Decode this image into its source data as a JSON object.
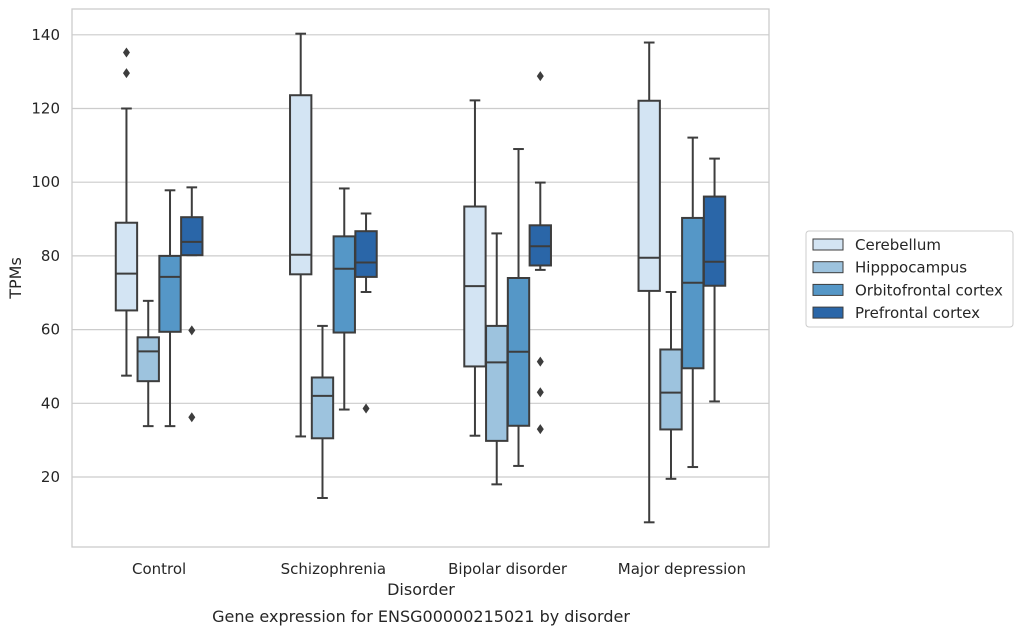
{
  "chart_data": {
    "type": "box",
    "title": "Gene expression for ENSG00000215021 by disorder",
    "xlabel": "Disorder",
    "ylabel": "TPMs",
    "ylim": [
      1,
      147
    ],
    "yticks": [
      20,
      40,
      60,
      80,
      100,
      120,
      140
    ],
    "grid": "horizontal",
    "legend_position": "right",
    "categories": [
      "Control",
      "Schizophrenia",
      "Bipolar disorder",
      "Major depression"
    ],
    "series": [
      {
        "name": "Cerebellum",
        "color": "#d3e4f3",
        "boxes": [
          {
            "whislo": 47.5,
            "q1": 65.2,
            "med": 75.2,
            "q3": 89.0,
            "whishi": 120.0,
            "fliers": [
              129.6,
              135.2
            ]
          },
          {
            "whislo": 31.0,
            "q1": 75.0,
            "med": 80.3,
            "q3": 123.6,
            "whishi": 140.3,
            "fliers": []
          },
          {
            "whislo": 31.2,
            "q1": 50.0,
            "med": 71.8,
            "q3": 93.4,
            "whishi": 122.2,
            "fliers": []
          },
          {
            "whislo": 7.7,
            "q1": 70.5,
            "med": 79.5,
            "q3": 122.1,
            "whishi": 137.9,
            "fliers": []
          }
        ]
      },
      {
        "name": "Hipppocampus",
        "color": "#9dc3de",
        "boxes": [
          {
            "whislo": 33.8,
            "q1": 46.0,
            "med": 54.1,
            "q3": 57.9,
            "whishi": 67.8,
            "fliers": []
          },
          {
            "whislo": 14.3,
            "q1": 30.5,
            "med": 42.0,
            "q3": 47.0,
            "whishi": 61.0,
            "fliers": []
          },
          {
            "whislo": 18.0,
            "q1": 29.8,
            "med": 51.1,
            "q3": 61.0,
            "whishi": 86.1,
            "fliers": []
          },
          {
            "whislo": 19.5,
            "q1": 32.9,
            "med": 42.9,
            "q3": 54.6,
            "whishi": 70.2,
            "fliers": []
          }
        ]
      },
      {
        "name": "Orbitofrontal cortex",
        "color": "#5597c7",
        "boxes": [
          {
            "whislo": 33.8,
            "q1": 59.4,
            "med": 74.3,
            "q3": 80.0,
            "whishi": 97.8,
            "fliers": []
          },
          {
            "whislo": 38.3,
            "q1": 59.2,
            "med": 76.5,
            "q3": 85.3,
            "whishi": 98.3,
            "fliers": []
          },
          {
            "whislo": 23.0,
            "q1": 33.9,
            "med": 54.0,
            "q3": 74.0,
            "whishi": 109.0,
            "fliers": []
          },
          {
            "whislo": 22.7,
            "q1": 49.5,
            "med": 72.7,
            "q3": 90.3,
            "whishi": 112.1,
            "fliers": []
          }
        ]
      },
      {
        "name": "Prefrontal cortex",
        "color": "#2a66a8",
        "boxes": [
          {
            "whislo": 80.2,
            "q1": 80.2,
            "med": 83.8,
            "q3": 90.5,
            "whishi": 98.6,
            "fliers": [
              36.2,
              59.8
            ]
          },
          {
            "whislo": 70.2,
            "q1": 74.3,
            "med": 78.2,
            "q3": 86.7,
            "whishi": 91.5,
            "fliers": [
              38.6
            ]
          },
          {
            "whislo": 76.2,
            "q1": 77.4,
            "med": 82.6,
            "q3": 88.3,
            "whishi": 99.9,
            "fliers": [
              33.0,
              43.0,
              51.3,
              128.8
            ]
          },
          {
            "whislo": 40.5,
            "q1": 71.9,
            "med": 78.4,
            "q3": 96.1,
            "whishi": 106.4,
            "fliers": []
          }
        ]
      }
    ]
  }
}
